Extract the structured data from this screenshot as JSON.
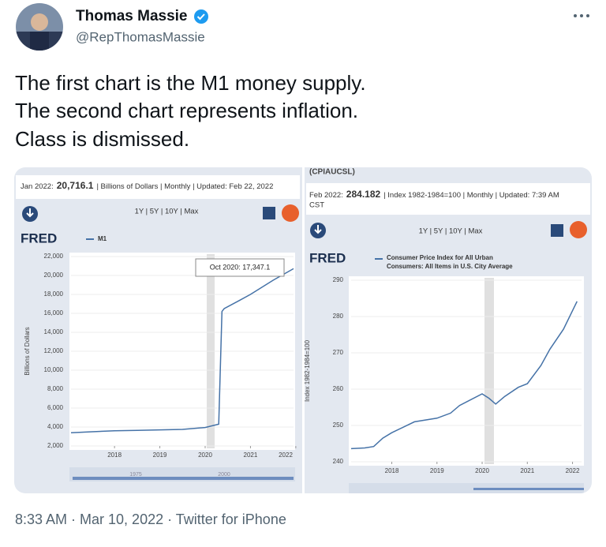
{
  "tweet": {
    "author": "Thomas Massie",
    "handle": "@RepThomasMassie",
    "text": [
      "The first chart is the M1 money supply.",
      "The second chart represents inflation.",
      "Class is dismissed."
    ],
    "footer": "8:33 AM · Mar 10, 2022 · Twitter for iPhone"
  },
  "chart_data": [
    {
      "type": "line",
      "header_prefix": "Jan 2022:",
      "header_value": "20,716.1",
      "header_rest": "| Billions of Dollars | Monthly | Updated: Feb 22, 2022",
      "range_buttons": "1Y | 5Y | 10Y | Max",
      "logo": "FRED",
      "ylabel": "Billions of Dollars",
      "tooltip": "Oct 2020: 17,347.1",
      "navigator_labels": [
        "1975",
        "2000"
      ],
      "x": [
        2017.04,
        2017.5,
        2018.0,
        2018.5,
        2019.0,
        2019.5,
        2020.0,
        2020.3,
        2020.37,
        2020.42,
        2020.75,
        2021.0,
        2021.5,
        2021.95
      ],
      "series": [
        {
          "name": "M1",
          "color": "#4572a7",
          "values": [
            3400,
            3500,
            3600,
            3650,
            3700,
            3750,
            3950,
            4300,
            16200,
            16500,
            17347.1,
            18000,
            19500,
            20716.1
          ]
        }
      ],
      "xlim": [
        2017.04,
        2021.95
      ],
      "xticks": [
        2018,
        2019,
        2020,
        2021,
        2022
      ],
      "ylim": [
        2000,
        22000
      ],
      "yticks": [
        {
          "value": 2000,
          "label": "2,000"
        },
        {
          "value": 4000,
          "label": "4,000"
        },
        {
          "value": 6000,
          "label": "6,000"
        },
        {
          "value": 8000,
          "label": "8,000"
        },
        {
          "value": 10000,
          "label": "10,000"
        },
        {
          "value": 12000,
          "label": "12,000"
        },
        {
          "value": 14000,
          "label": "14,000"
        },
        {
          "value": 16000,
          "label": "16,000"
        },
        {
          "value": 18000,
          "label": "18,000"
        },
        {
          "value": 20000,
          "label": "20,000"
        },
        {
          "value": 22000,
          "label": "22,000"
        }
      ],
      "grid": true
    },
    {
      "type": "line",
      "series_id": "(CPIAUCSL)",
      "header_prefix": "Feb 2022:",
      "header_value": "284.182",
      "header_rest": "| Index 1982-1984=100 | Monthly | Updated: 7:39 AM",
      "header_continued": "CST",
      "range_buttons": "1Y | 5Y | 10Y | Max",
      "logo": "FRED",
      "ylabel": "Index 1982-1984=100",
      "legend_lines": [
        "Consumer Price Index for All Urban",
        "Consumers: All Items in U.S. City Average"
      ],
      "x": [
        2017.1,
        2017.4,
        2017.6,
        2017.8,
        2018.0,
        2018.5,
        2019.0,
        2019.3,
        2019.5,
        2020.0,
        2020.15,
        2020.3,
        2020.5,
        2020.8,
        2021.0,
        2021.3,
        2021.5,
        2021.8,
        2022.1
      ],
      "series": [
        {
          "name": "Consumer Price Index for All Urban Consumers: All Items in U.S. City Average",
          "color": "#4572a7",
          "values": [
            243.6,
            243.8,
            244.2,
            246.5,
            248.0,
            251.0,
            252.0,
            253.4,
            255.5,
            258.7,
            257.5,
            255.9,
            258.0,
            260.5,
            261.5,
            266.5,
            271.0,
            276.5,
            284.182
          ]
        }
      ],
      "xlim": [
        2017.1,
        2022.2
      ],
      "xticks": [
        2018,
        2019,
        2020,
        2021,
        2022
      ],
      "ylim": [
        240,
        290
      ],
      "yticks": [
        240,
        250,
        260,
        270,
        280,
        290
      ],
      "grid": true
    }
  ]
}
